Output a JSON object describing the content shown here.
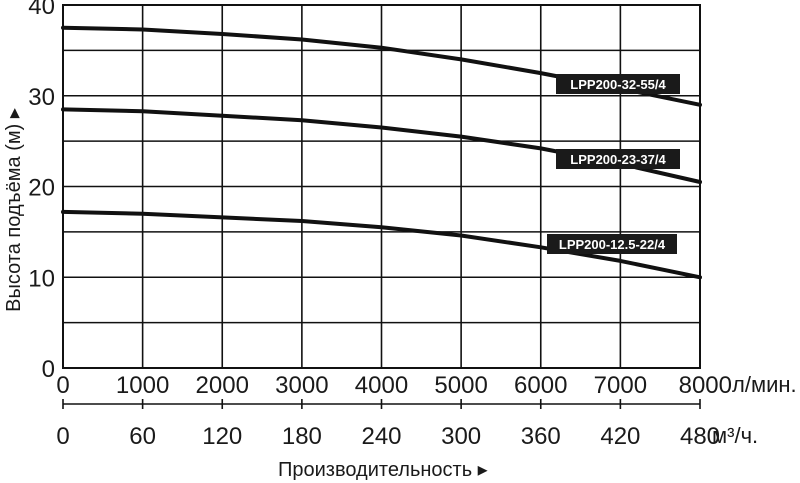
{
  "chart_data": {
    "type": "line",
    "title": "",
    "ylabel": "Высота подъёма (м) ▸",
    "xlabel": "Производительность ▸",
    "x_unit": "л/мин.",
    "x2_unit": "м³/ч.",
    "ylim": [
      0,
      40
    ],
    "xlim": [
      0,
      8000
    ],
    "y_ticks": [
      "0",
      "10",
      "20",
      "30",
      "40"
    ],
    "x_ticks": [
      "0",
      "1000",
      "2000",
      "3000",
      "4000",
      "5000",
      "6000",
      "7000",
      "8000"
    ],
    "x2_ticks": [
      "0",
      "60",
      "120",
      "180",
      "240",
      "300",
      "360",
      "420",
      "480"
    ],
    "grid": true,
    "series": [
      {
        "name": "LPP200-32-55/4",
        "x": [
          0,
          1000,
          2000,
          3000,
          4000,
          5000,
          6000,
          7000,
          8000
        ],
        "y": [
          37.5,
          37.3,
          36.8,
          36.2,
          35.3,
          34.0,
          32.5,
          30.8,
          29.0
        ]
      },
      {
        "name": "LPP200-23-37/4",
        "x": [
          0,
          1000,
          2000,
          3000,
          4000,
          5000,
          6000,
          7000,
          8000
        ],
        "y": [
          28.5,
          28.3,
          27.8,
          27.3,
          26.5,
          25.5,
          24.2,
          22.5,
          20.5
        ]
      },
      {
        "name": "LPP200-12.5-22/4",
        "x": [
          0,
          1000,
          2000,
          3000,
          4000,
          5000,
          6000,
          7000,
          8000
        ],
        "y": [
          17.2,
          17.0,
          16.6,
          16.2,
          15.5,
          14.6,
          13.3,
          11.8,
          10.0
        ]
      }
    ]
  }
}
